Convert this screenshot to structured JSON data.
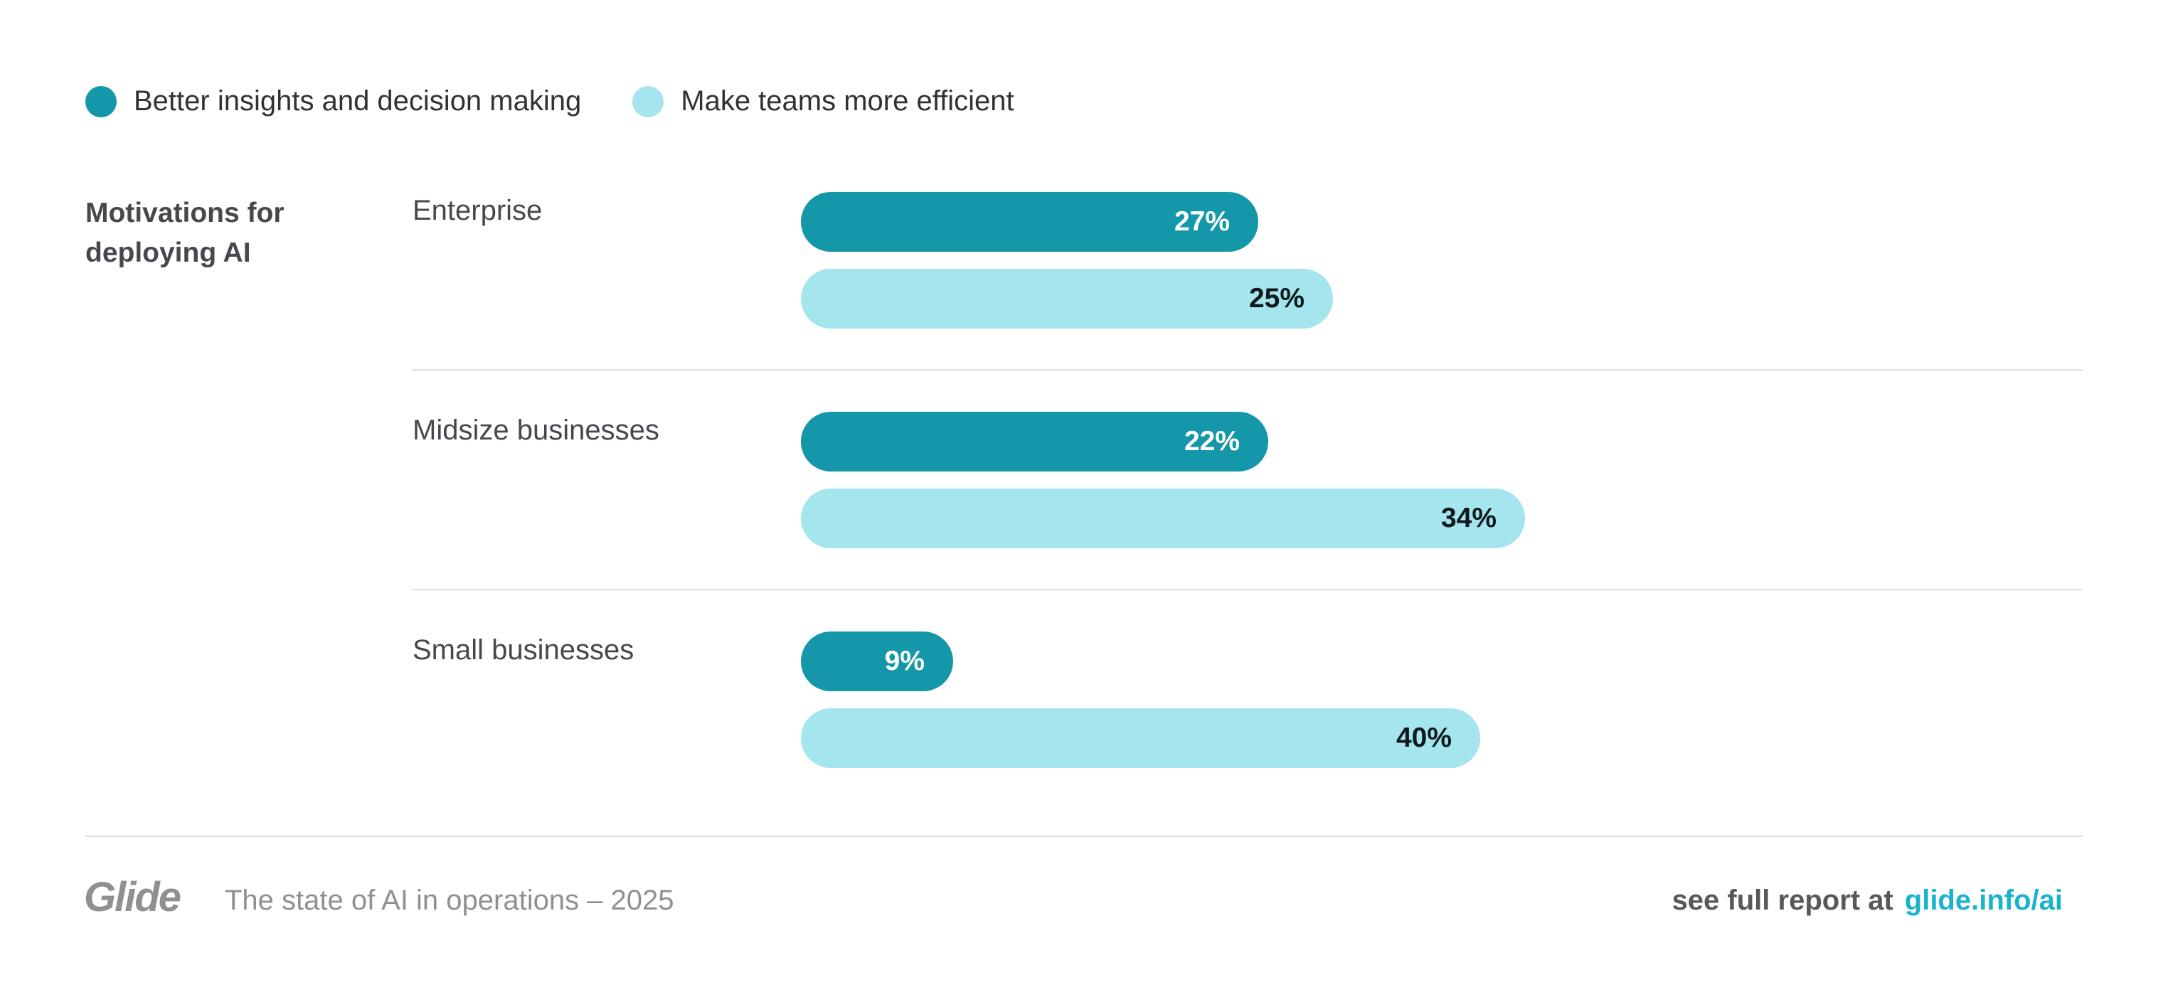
{
  "colors": {
    "series1": "#1597aa",
    "series2": "#a4e5ee",
    "label_on_dark": "#ffffff",
    "label_on_light": "#0f1a1c",
    "link": "#1ab3cc"
  },
  "chart_data": {
    "type": "bar",
    "orientation": "horizontal",
    "title": "Motivations for deploying AI",
    "categories": [
      "Enterprise",
      "Midsize businesses",
      "Small businesses"
    ],
    "series": [
      {
        "name": "Better insights and decision making",
        "values": [
          27,
          22,
          9
        ],
        "labels": [
          "27%",
          "22%",
          "9%"
        ]
      },
      {
        "name": "Make teams more efficient",
        "values": [
          25,
          34,
          40
        ],
        "labels": [
          "25%",
          "34%",
          "40%"
        ]
      }
    ],
    "unit": "%",
    "grid": false,
    "legend_position": "top-left"
  },
  "footer": {
    "logo": "Glide",
    "subtitle": "The state of AI in operations – 2025",
    "cta_text": "see full report at",
    "cta_link": "glide.info/ai"
  }
}
